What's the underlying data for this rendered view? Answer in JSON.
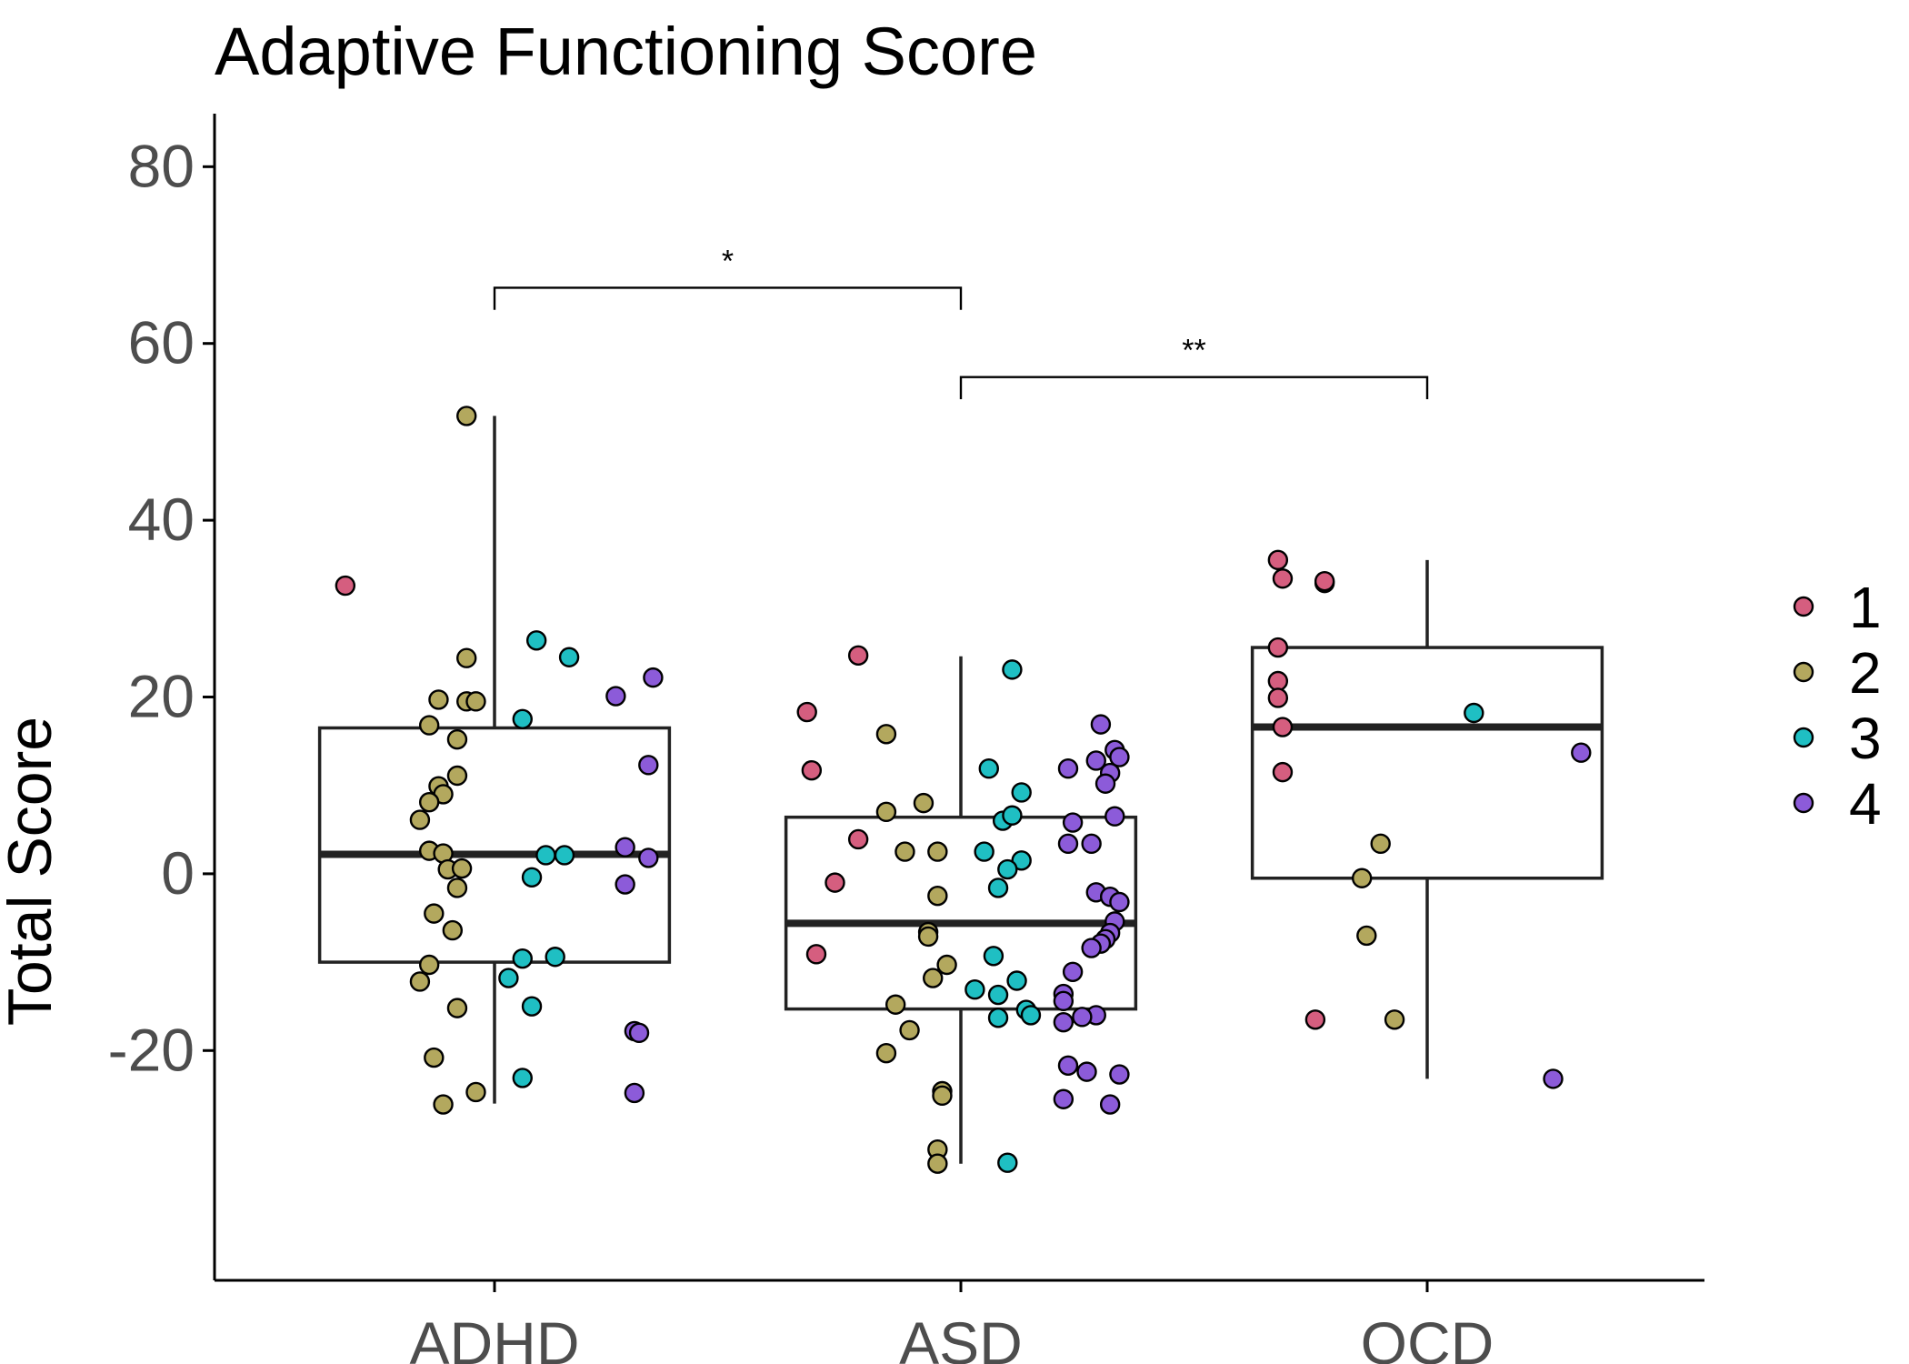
{
  "chart_data": {
    "type": "box",
    "title": "Adaptive Functioning Score",
    "xlabel": "",
    "ylabel": "Total Score",
    "ylim": [
      -46,
      86
    ],
    "y_ticks": [
      -20,
      0,
      20,
      40,
      60,
      80
    ],
    "y_tick_labels": [
      "-20",
      "0",
      "20",
      "40",
      "60",
      "80"
    ],
    "grid": false,
    "categories": [
      "ADHD",
      "ASD",
      "OCD"
    ],
    "boxes": [
      {
        "group": "ADHD",
        "q1": -10,
        "median": 2.2,
        "q3": 16.5,
        "whisker_low": -26,
        "whisker_high": 51.8
      },
      {
        "group": "ASD",
        "q1": -15.3,
        "median": -5.6,
        "q3": 6.4,
        "whisker_low": -32.8,
        "whisker_high": 24.6
      },
      {
        "group": "OCD",
        "q1": -0.5,
        "median": 16.6,
        "q3": 25.6,
        "whisker_low": -23.2,
        "whisker_high": 35.5
      }
    ],
    "legend": {
      "position": "right",
      "title": "",
      "entries": [
        {
          "label": "1",
          "color": "#D55E7F"
        },
        {
          "label": "2",
          "color": "#B3A85E"
        },
        {
          "label": "3",
          "color": "#1FBFC3"
        },
        {
          "label": "4",
          "color": "#8C5BD9"
        }
      ]
    },
    "significance": [
      {
        "from": "ADHD",
        "to": "ASD",
        "label": "*",
        "y": 66.3,
        "tick_bottom": 63.8
      },
      {
        "from": "ASD",
        "to": "OCD",
        "label": "**",
        "y": 56.2,
        "tick_bottom": 53.7
      }
    ],
    "points": [
      {
        "group": "ADHD",
        "x": -0.32,
        "y": 32.6,
        "cluster": "1"
      },
      {
        "group": "ADHD",
        "x": -0.06,
        "y": 51.8,
        "cluster": "2"
      },
      {
        "group": "ADHD",
        "x": -0.06,
        "y": 24.4,
        "cluster": "2"
      },
      {
        "group": "ADHD",
        "x": -0.12,
        "y": 19.7,
        "cluster": "2"
      },
      {
        "group": "ADHD",
        "x": -0.06,
        "y": 19.5,
        "cluster": "2"
      },
      {
        "group": "ADHD",
        "x": -0.04,
        "y": 19.5,
        "cluster": "2"
      },
      {
        "group": "ADHD",
        "x": -0.14,
        "y": 16.8,
        "cluster": "2"
      },
      {
        "group": "ADHD",
        "x": -0.08,
        "y": 15.2,
        "cluster": "2"
      },
      {
        "group": "ADHD",
        "x": -0.08,
        "y": 11.1,
        "cluster": "2"
      },
      {
        "group": "ADHD",
        "x": -0.12,
        "y": 9.9,
        "cluster": "2"
      },
      {
        "group": "ADHD",
        "x": -0.11,
        "y": 9.0,
        "cluster": "2"
      },
      {
        "group": "ADHD",
        "x": -0.14,
        "y": 8.1,
        "cluster": "2"
      },
      {
        "group": "ADHD",
        "x": -0.16,
        "y": 6.1,
        "cluster": "2"
      },
      {
        "group": "ADHD",
        "x": -0.14,
        "y": 2.6,
        "cluster": "2"
      },
      {
        "group": "ADHD",
        "x": -0.11,
        "y": 2.3,
        "cluster": "2"
      },
      {
        "group": "ADHD",
        "x": -0.1,
        "y": 0.5,
        "cluster": "2"
      },
      {
        "group": "ADHD",
        "x": -0.07,
        "y": 0.6,
        "cluster": "2"
      },
      {
        "group": "ADHD",
        "x": -0.08,
        "y": -1.6,
        "cluster": "2"
      },
      {
        "group": "ADHD",
        "x": -0.13,
        "y": -4.5,
        "cluster": "2"
      },
      {
        "group": "ADHD",
        "x": -0.09,
        "y": -6.4,
        "cluster": "2"
      },
      {
        "group": "ADHD",
        "x": -0.14,
        "y": -10.3,
        "cluster": "2"
      },
      {
        "group": "ADHD",
        "x": -0.16,
        "y": -12.2,
        "cluster": "2"
      },
      {
        "group": "ADHD",
        "x": -0.08,
        "y": -15.2,
        "cluster": "2"
      },
      {
        "group": "ADHD",
        "x": -0.13,
        "y": -20.8,
        "cluster": "2"
      },
      {
        "group": "ADHD",
        "x": -0.04,
        "y": -24.7,
        "cluster": "2"
      },
      {
        "group": "ADHD",
        "x": -0.11,
        "y": -26.1,
        "cluster": "2"
      },
      {
        "group": "ADHD",
        "x": 0.09,
        "y": 26.4,
        "cluster": "3"
      },
      {
        "group": "ADHD",
        "x": 0.16,
        "y": 24.5,
        "cluster": "3"
      },
      {
        "group": "ADHD",
        "x": 0.06,
        "y": 17.5,
        "cluster": "3"
      },
      {
        "group": "ADHD",
        "x": 0.11,
        "y": 2.1,
        "cluster": "3"
      },
      {
        "group": "ADHD",
        "x": 0.15,
        "y": 2.1,
        "cluster": "3"
      },
      {
        "group": "ADHD",
        "x": 0.08,
        "y": -0.4,
        "cluster": "3"
      },
      {
        "group": "ADHD",
        "x": 0.06,
        "y": -9.6,
        "cluster": "3"
      },
      {
        "group": "ADHD",
        "x": 0.13,
        "y": -9.4,
        "cluster": "3"
      },
      {
        "group": "ADHD",
        "x": 0.03,
        "y": -11.8,
        "cluster": "3"
      },
      {
        "group": "ADHD",
        "x": 0.08,
        "y": -15.0,
        "cluster": "3"
      },
      {
        "group": "ADHD",
        "x": 0.06,
        "y": -23.1,
        "cluster": "3"
      },
      {
        "group": "ADHD",
        "x": 0.34,
        "y": 22.2,
        "cluster": "4"
      },
      {
        "group": "ADHD",
        "x": 0.26,
        "y": 20.1,
        "cluster": "4"
      },
      {
        "group": "ADHD",
        "x": 0.33,
        "y": 12.3,
        "cluster": "4"
      },
      {
        "group": "ADHD",
        "x": 0.28,
        "y": 3.0,
        "cluster": "4"
      },
      {
        "group": "ADHD",
        "x": 0.33,
        "y": 1.8,
        "cluster": "4"
      },
      {
        "group": "ADHD",
        "x": 0.28,
        "y": -1.2,
        "cluster": "4"
      },
      {
        "group": "ADHD",
        "x": 0.3,
        "y": -17.8,
        "cluster": "4"
      },
      {
        "group": "ADHD",
        "x": 0.31,
        "y": -18.0,
        "cluster": "4"
      },
      {
        "group": "ADHD",
        "x": 0.3,
        "y": -24.8,
        "cluster": "4"
      },
      {
        "group": "ASD",
        "x": -0.22,
        "y": 24.7,
        "cluster": "1"
      },
      {
        "group": "ASD",
        "x": -0.33,
        "y": 18.3,
        "cluster": "1"
      },
      {
        "group": "ASD",
        "x": -0.32,
        "y": 11.7,
        "cluster": "1"
      },
      {
        "group": "ASD",
        "x": -0.22,
        "y": 3.9,
        "cluster": "1"
      },
      {
        "group": "ASD",
        "x": -0.27,
        "y": -1.0,
        "cluster": "1"
      },
      {
        "group": "ASD",
        "x": -0.31,
        "y": -9.1,
        "cluster": "1"
      },
      {
        "group": "ASD",
        "x": -0.16,
        "y": 15.8,
        "cluster": "2"
      },
      {
        "group": "ASD",
        "x": -0.08,
        "y": 8.0,
        "cluster": "2"
      },
      {
        "group": "ASD",
        "x": -0.16,
        "y": 7.0,
        "cluster": "2"
      },
      {
        "group": "ASD",
        "x": -0.12,
        "y": 2.5,
        "cluster": "2"
      },
      {
        "group": "ASD",
        "x": -0.05,
        "y": 2.5,
        "cluster": "2"
      },
      {
        "group": "ASD",
        "x": -0.05,
        "y": -2.5,
        "cluster": "2"
      },
      {
        "group": "ASD",
        "x": -0.07,
        "y": -6.6,
        "cluster": "2"
      },
      {
        "group": "ASD",
        "x": -0.07,
        "y": -7.1,
        "cluster": "2"
      },
      {
        "group": "ASD",
        "x": -0.03,
        "y": -10.3,
        "cluster": "2"
      },
      {
        "group": "ASD",
        "x": -0.06,
        "y": -11.8,
        "cluster": "2"
      },
      {
        "group": "ASD",
        "x": -0.14,
        "y": -14.8,
        "cluster": "2"
      },
      {
        "group": "ASD",
        "x": -0.11,
        "y": -17.7,
        "cluster": "2"
      },
      {
        "group": "ASD",
        "x": -0.16,
        "y": -20.3,
        "cluster": "2"
      },
      {
        "group": "ASD",
        "x": -0.04,
        "y": -24.6,
        "cluster": "2"
      },
      {
        "group": "ASD",
        "x": -0.04,
        "y": -25.1,
        "cluster": "2"
      },
      {
        "group": "ASD",
        "x": -0.05,
        "y": -31.2,
        "cluster": "2"
      },
      {
        "group": "ASD",
        "x": -0.05,
        "y": -32.8,
        "cluster": "2"
      },
      {
        "group": "ASD",
        "x": 0.11,
        "y": 23.1,
        "cluster": "3"
      },
      {
        "group": "ASD",
        "x": 0.06,
        "y": 11.9,
        "cluster": "3"
      },
      {
        "group": "ASD",
        "x": 0.13,
        "y": 9.2,
        "cluster": "3"
      },
      {
        "group": "ASD",
        "x": 0.09,
        "y": 6.0,
        "cluster": "3"
      },
      {
        "group": "ASD",
        "x": 0.11,
        "y": 6.6,
        "cluster": "3"
      },
      {
        "group": "ASD",
        "x": 0.05,
        "y": 2.5,
        "cluster": "3"
      },
      {
        "group": "ASD",
        "x": 0.13,
        "y": 1.5,
        "cluster": "3"
      },
      {
        "group": "ASD",
        "x": 0.1,
        "y": 0.5,
        "cluster": "3"
      },
      {
        "group": "ASD",
        "x": 0.08,
        "y": -1.6,
        "cluster": "3"
      },
      {
        "group": "ASD",
        "x": 0.07,
        "y": -9.3,
        "cluster": "3"
      },
      {
        "group": "ASD",
        "x": 0.12,
        "y": -12.1,
        "cluster": "3"
      },
      {
        "group": "ASD",
        "x": 0.03,
        "y": -13.1,
        "cluster": "3"
      },
      {
        "group": "ASD",
        "x": 0.08,
        "y": -13.7,
        "cluster": "3"
      },
      {
        "group": "ASD",
        "x": 0.14,
        "y": -15.4,
        "cluster": "3"
      },
      {
        "group": "ASD",
        "x": 0.15,
        "y": -16.0,
        "cluster": "3"
      },
      {
        "group": "ASD",
        "x": 0.08,
        "y": -16.3,
        "cluster": "3"
      },
      {
        "group": "ASD",
        "x": 0.1,
        "y": -32.7,
        "cluster": "3"
      },
      {
        "group": "ASD",
        "x": 0.3,
        "y": 16.9,
        "cluster": "4"
      },
      {
        "group": "ASD",
        "x": 0.33,
        "y": 14.0,
        "cluster": "4"
      },
      {
        "group": "ASD",
        "x": 0.34,
        "y": 13.2,
        "cluster": "4"
      },
      {
        "group": "ASD",
        "x": 0.29,
        "y": 12.8,
        "cluster": "4"
      },
      {
        "group": "ASD",
        "x": 0.23,
        "y": 11.9,
        "cluster": "4"
      },
      {
        "group": "ASD",
        "x": 0.32,
        "y": 11.4,
        "cluster": "4"
      },
      {
        "group": "ASD",
        "x": 0.31,
        "y": 10.2,
        "cluster": "4"
      },
      {
        "group": "ASD",
        "x": 0.33,
        "y": 6.5,
        "cluster": "4"
      },
      {
        "group": "ASD",
        "x": 0.24,
        "y": 5.8,
        "cluster": "4"
      },
      {
        "group": "ASD",
        "x": 0.23,
        "y": 3.4,
        "cluster": "4"
      },
      {
        "group": "ASD",
        "x": 0.28,
        "y": 3.4,
        "cluster": "4"
      },
      {
        "group": "ASD",
        "x": 0.29,
        "y": -2.1,
        "cluster": "4"
      },
      {
        "group": "ASD",
        "x": 0.32,
        "y": -2.6,
        "cluster": "4"
      },
      {
        "group": "ASD",
        "x": 0.34,
        "y": -3.2,
        "cluster": "4"
      },
      {
        "group": "ASD",
        "x": 0.33,
        "y": -5.4,
        "cluster": "4"
      },
      {
        "group": "ASD",
        "x": 0.32,
        "y": -6.7,
        "cluster": "4"
      },
      {
        "group": "ASD",
        "x": 0.31,
        "y": -7.4,
        "cluster": "4"
      },
      {
        "group": "ASD",
        "x": 0.3,
        "y": -7.9,
        "cluster": "4"
      },
      {
        "group": "ASD",
        "x": 0.28,
        "y": -8.4,
        "cluster": "4"
      },
      {
        "group": "ASD",
        "x": 0.24,
        "y": -11.1,
        "cluster": "4"
      },
      {
        "group": "ASD",
        "x": 0.22,
        "y": -13.6,
        "cluster": "4"
      },
      {
        "group": "ASD",
        "x": 0.22,
        "y": -14.4,
        "cluster": "4"
      },
      {
        "group": "ASD",
        "x": 0.29,
        "y": -16.0,
        "cluster": "4"
      },
      {
        "group": "ASD",
        "x": 0.26,
        "y": -16.2,
        "cluster": "4"
      },
      {
        "group": "ASD",
        "x": 0.22,
        "y": -16.8,
        "cluster": "4"
      },
      {
        "group": "ASD",
        "x": 0.23,
        "y": -21.7,
        "cluster": "4"
      },
      {
        "group": "ASD",
        "x": 0.27,
        "y": -22.4,
        "cluster": "4"
      },
      {
        "group": "ASD",
        "x": 0.34,
        "y": -22.7,
        "cluster": "4"
      },
      {
        "group": "ASD",
        "x": 0.22,
        "y": -25.5,
        "cluster": "4"
      },
      {
        "group": "ASD",
        "x": 0.32,
        "y": -26.1,
        "cluster": "4"
      },
      {
        "group": "OCD",
        "x": -0.32,
        "y": 35.5,
        "cluster": "1"
      },
      {
        "group": "OCD",
        "x": -0.31,
        "y": 33.4,
        "cluster": "1"
      },
      {
        "group": "OCD",
        "x": -0.22,
        "y": 32.9,
        "cluster": "1"
      },
      {
        "group": "OCD",
        "x": -0.22,
        "y": 33.1,
        "cluster": "1"
      },
      {
        "group": "OCD",
        "x": -0.32,
        "y": 25.6,
        "cluster": "1"
      },
      {
        "group": "OCD",
        "x": -0.32,
        "y": 21.8,
        "cluster": "1"
      },
      {
        "group": "OCD",
        "x": -0.32,
        "y": 19.9,
        "cluster": "1"
      },
      {
        "group": "OCD",
        "x": -0.31,
        "y": 16.6,
        "cluster": "1"
      },
      {
        "group": "OCD",
        "x": -0.31,
        "y": 11.5,
        "cluster": "1"
      },
      {
        "group": "OCD",
        "x": -0.24,
        "y": -16.5,
        "cluster": "1"
      },
      {
        "group": "OCD",
        "x": -0.1,
        "y": 3.4,
        "cluster": "2"
      },
      {
        "group": "OCD",
        "x": -0.14,
        "y": -0.5,
        "cluster": "2"
      },
      {
        "group": "OCD",
        "x": -0.13,
        "y": -7.0,
        "cluster": "2"
      },
      {
        "group": "OCD",
        "x": -0.07,
        "y": -16.5,
        "cluster": "2"
      },
      {
        "group": "OCD",
        "x": 0.1,
        "y": 18.2,
        "cluster": "3"
      },
      {
        "group": "OCD",
        "x": 0.33,
        "y": 13.7,
        "cluster": "4"
      },
      {
        "group": "OCD",
        "x": 0.27,
        "y": -23.2,
        "cluster": "4"
      }
    ]
  }
}
